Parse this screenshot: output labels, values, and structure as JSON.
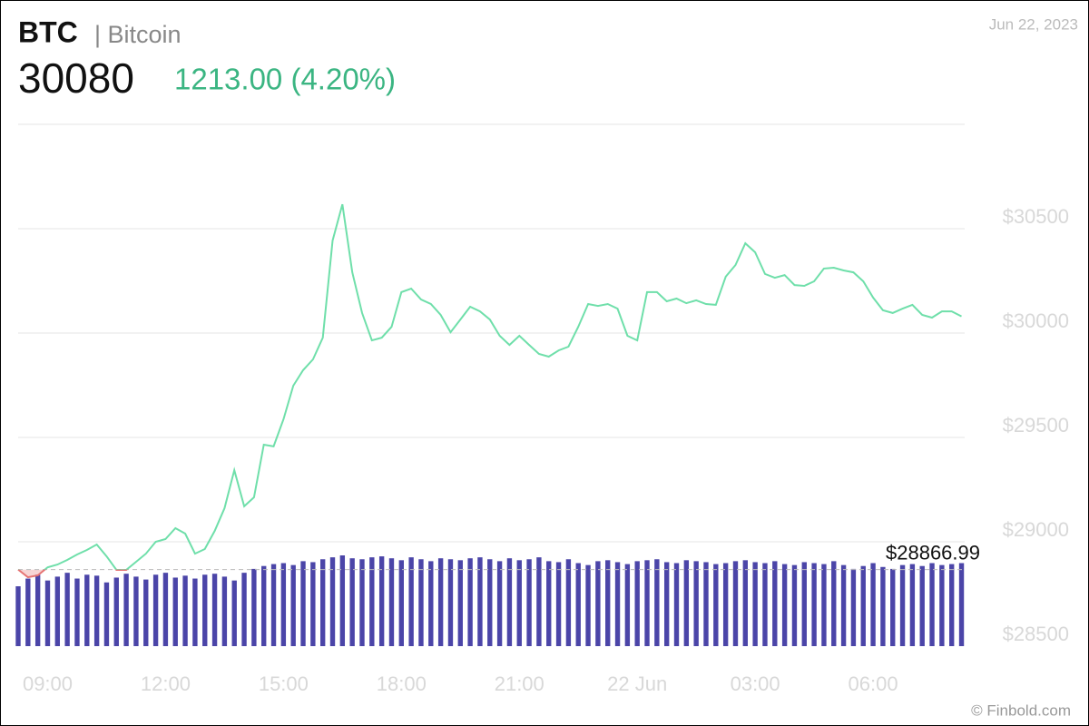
{
  "chart_data": {
    "type": "line",
    "symbol": "BTC",
    "name": "| Bitcoin",
    "price": 30080,
    "change": "1213.00 (4.20%)",
    "date": "Jun 22, 2023",
    "source": "© Finbold.com",
    "reference": {
      "value": 28866.99,
      "label": "$28866.99"
    },
    "up_color": "#6fdfaa",
    "down_color": "#e57373",
    "volume_color": "#4b45a8",
    "grid": true,
    "xlim": [
      8.25,
      32.33
    ],
    "xticks": [
      {
        "value": 9,
        "label": "09:00"
      },
      {
        "value": 12,
        "label": "12:00"
      },
      {
        "value": 15,
        "label": "15:00"
      },
      {
        "value": 18,
        "label": "18:00"
      },
      {
        "value": 21,
        "label": "21:00"
      },
      {
        "value": 24,
        "label": "22 Jun"
      },
      {
        "value": 27,
        "label": "03:00"
      },
      {
        "value": 30,
        "label": "06:00"
      }
    ],
    "ylim": [
      28500,
      31000
    ],
    "yticks": [
      {
        "value": 28500,
        "label": "$28500"
      },
      {
        "value": 29000,
        "label": "$29000"
      },
      {
        "value": 29500,
        "label": "$29500"
      },
      {
        "value": 30000,
        "label": "$30000"
      },
      {
        "value": 30500,
        "label": "$30500"
      }
    ],
    "x": [
      8.25,
      8.5,
      8.75,
      9,
      9.25,
      9.5,
      9.75,
      10,
      10.25,
      10.5,
      10.75,
      11,
      11.25,
      11.5,
      11.75,
      12,
      12.25,
      12.5,
      12.75,
      13,
      13.25,
      13.5,
      13.75,
      14,
      14.25,
      14.5,
      14.75,
      15,
      15.25,
      15.5,
      15.75,
      16,
      16.25,
      16.5,
      16.75,
      17,
      17.25,
      17.5,
      17.75,
      18,
      18.25,
      18.5,
      18.75,
      19,
      19.25,
      19.5,
      19.75,
      20,
      20.25,
      20.5,
      20.75,
      21,
      21.25,
      21.5,
      21.75,
      22,
      22.25,
      22.5,
      22.75,
      23,
      23.25,
      23.5,
      23.75,
      24,
      24.25,
      24.5,
      24.75,
      25,
      25.25,
      25.5,
      25.75,
      26,
      26.25,
      26.5,
      26.75,
      27,
      27.25,
      27.5,
      27.75,
      28,
      28.25,
      28.5,
      28.75,
      29,
      29.25,
      29.5,
      29.75,
      30,
      30.25,
      30.5,
      30.75,
      31,
      31.25,
      31.5,
      31.75,
      32,
      32.25
    ],
    "series": [
      {
        "name": "BTC",
        "values": [
          28867,
          28830,
          28839,
          28878,
          28891,
          28913,
          28939,
          28961,
          28987,
          28930,
          28865,
          28865,
          28904,
          28943,
          29000,
          29013,
          29065,
          29039,
          28943,
          28965,
          29052,
          29161,
          29343,
          29170,
          29213,
          29465,
          29457,
          29587,
          29748,
          29822,
          29874,
          29978,
          30443,
          30617,
          30291,
          30096,
          29965,
          29978,
          30030,
          30196,
          30213,
          30161,
          30139,
          30087,
          30004,
          30065,
          30126,
          30104,
          30065,
          29987,
          29943,
          29987,
          29943,
          29900,
          29887,
          29917,
          29935,
          30030,
          30139,
          30130,
          30139,
          30117,
          29987,
          29965,
          30196,
          30196,
          30152,
          30165,
          30143,
          30157,
          30139,
          30135,
          30270,
          30326,
          30430,
          30387,
          30283,
          30265,
          30278,
          30230,
          30226,
          30248,
          30309,
          30313,
          30300,
          30291,
          30248,
          30170,
          30109,
          30096,
          30117,
          30135,
          30087,
          30074,
          30104,
          30104,
          30080
        ]
      },
      {
        "name": "Volume",
        "values": [
          62,
          70,
          74,
          68,
          72,
          76,
          70,
          74,
          73,
          66,
          71,
          75,
          72,
          69,
          74,
          76,
          71,
          73,
          70,
          74,
          75,
          72,
          68,
          76,
          80,
          83,
          85,
          86,
          84,
          88,
          87,
          90,
          92,
          94,
          91,
          90,
          92,
          93,
          91,
          89,
          92,
          90,
          88,
          91,
          90,
          89,
          91,
          92,
          90,
          88,
          91,
          89,
          90,
          92,
          88,
          87,
          90,
          86,
          84,
          88,
          89,
          87,
          85,
          88,
          89,
          90,
          87,
          86,
          89,
          88,
          87,
          85,
          86,
          88,
          89,
          87,
          86,
          88,
          85,
          84,
          87,
          86,
          85,
          88,
          84,
          80,
          83,
          86,
          82,
          80,
          84,
          85,
          83,
          86,
          84,
          85,
          86
        ]
      }
    ]
  }
}
